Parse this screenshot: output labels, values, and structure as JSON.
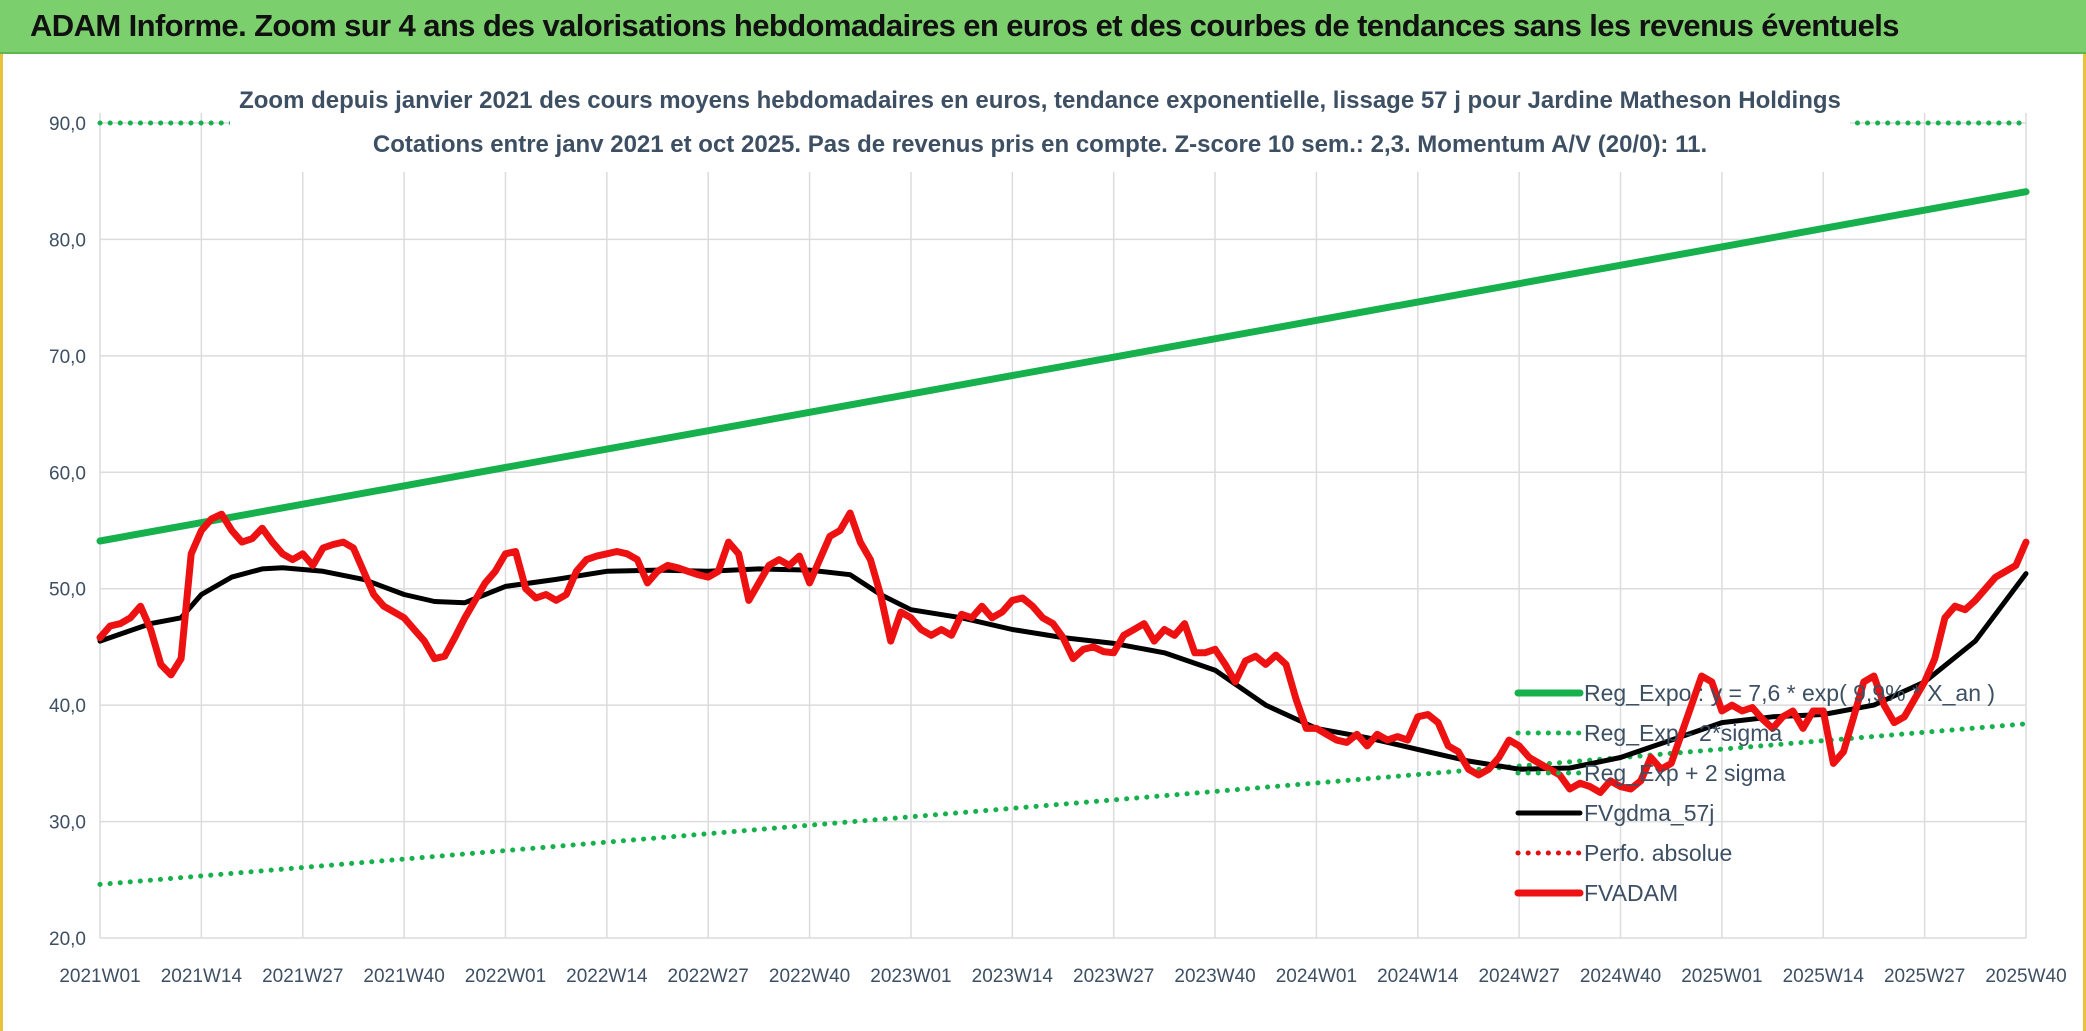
{
  "header": {
    "title": "ADAM Informe. Zoom sur 4 ans des valorisations hebdomadaires en euros et des courbes de tendances sans les revenus éventuels"
  },
  "colors": {
    "banner": "#7ccf6d",
    "reg_exp": "#16b04d",
    "fvgdma": "#000000",
    "perfo": "#e01010",
    "fvadam": "#ee1111",
    "grid": "#dcdcdc",
    "text": "#3d4f63"
  },
  "chart_data": {
    "type": "line",
    "title_line1": "Zoom depuis janvier 2021 des cours moyens hebdomadaires en euros, tendance exponentielle, lissage 57 j pour Jardine Matheson Holdings",
    "title_line2": "Cotations entre janv 2021 et oct 2025. Pas de revenus pris en compte. Z-score 10 sem.: 2,3. Momentum A/V (20/0): 11.",
    "ylim": [
      20,
      90
    ],
    "y_ticks": [
      "20,0",
      "30,0",
      "40,0",
      "50,0",
      "60,0",
      "70,0",
      "80,0",
      "90,0"
    ],
    "x_ticks": [
      "2021W01",
      "2021W14",
      "2021W27",
      "2021W40",
      "2022W01",
      "2022W14",
      "2022W27",
      "2022W40",
      "2023W01",
      "2023W14",
      "2023W27",
      "2023W40",
      "2024W01",
      "2024W14",
      "2024W27",
      "2024W40",
      "2025W01",
      "2025W14",
      "2025W27",
      "2025W40"
    ],
    "legend_position": "bottom-right",
    "series": [
      {
        "name": "Reg_Expo : y = 7,6 * exp( 9,9% * X_an )",
        "style": "solid",
        "color": "#16b04d",
        "points": [
          [
            0,
            54.1
          ],
          [
            19,
            84.1
          ]
        ]
      },
      {
        "name": "Reg_Exp - 2*sigma",
        "style": "dotted",
        "color": "#16b04d",
        "points": [
          [
            0,
            24.6
          ],
          [
            19,
            38.4
          ]
        ]
      },
      {
        "name": "Reg_Exp + 2 sigma",
        "style": "dotted",
        "color": "#16b04d",
        "points": [
          [
            0,
            90.0
          ],
          [
            19,
            90.0
          ]
        ]
      },
      {
        "name": "FVgdma_57j",
        "style": "solid",
        "color": "#000000",
        "points": [
          [
            0,
            45.5
          ],
          [
            0.5,
            47.0
          ],
          [
            0.8,
            47.5
          ],
          [
            1.0,
            49.5
          ],
          [
            1.3,
            51.0
          ],
          [
            1.6,
            51.7
          ],
          [
            1.8,
            51.8
          ],
          [
            2.2,
            51.5
          ],
          [
            2.6,
            50.8
          ],
          [
            3.0,
            49.5
          ],
          [
            3.3,
            48.9
          ],
          [
            3.6,
            48.8
          ],
          [
            4.0,
            50.2
          ],
          [
            4.5,
            50.8
          ],
          [
            5.0,
            51.5
          ],
          [
            5.5,
            51.6
          ],
          [
            6.0,
            51.5
          ],
          [
            6.5,
            51.7
          ],
          [
            7.0,
            51.6
          ],
          [
            7.4,
            51.2
          ],
          [
            7.7,
            49.5
          ],
          [
            8.0,
            48.2
          ],
          [
            8.5,
            47.5
          ],
          [
            9.0,
            46.5
          ],
          [
            9.5,
            45.8
          ],
          [
            10.0,
            45.3
          ],
          [
            10.5,
            44.5
          ],
          [
            11.0,
            43.0
          ],
          [
            11.5,
            40.0
          ],
          [
            12.0,
            38.0
          ],
          [
            12.5,
            37.2
          ],
          [
            13.0,
            36.2
          ],
          [
            13.5,
            35.2
          ],
          [
            14.0,
            34.5
          ],
          [
            14.5,
            34.6
          ],
          [
            15.0,
            35.5
          ],
          [
            15.5,
            37.0
          ],
          [
            16.0,
            38.5
          ],
          [
            16.5,
            39.0
          ],
          [
            17.0,
            39.2
          ],
          [
            17.5,
            40.0
          ],
          [
            18.0,
            42.0
          ],
          [
            18.5,
            45.5
          ],
          [
            19.0,
            51.3
          ]
        ]
      },
      {
        "name": "Perfo. absolue",
        "style": "dotted",
        "color": "#e01010",
        "points": []
      },
      {
        "name": "FVADAM",
        "style": "solid",
        "color": "#ee1111",
        "points": [
          [
            0,
            45.8
          ],
          [
            0.1,
            46.8
          ],
          [
            0.2,
            47.0
          ],
          [
            0.3,
            47.5
          ],
          [
            0.4,
            48.5
          ],
          [
            0.5,
            46.5
          ],
          [
            0.6,
            43.5
          ],
          [
            0.7,
            42.6
          ],
          [
            0.8,
            44.0
          ],
          [
            0.9,
            53.0
          ],
          [
            1.0,
            55.0
          ],
          [
            1.1,
            56.0
          ],
          [
            1.2,
            56.4
          ],
          [
            1.3,
            55.0
          ],
          [
            1.4,
            54.0
          ],
          [
            1.5,
            54.3
          ],
          [
            1.6,
            55.2
          ],
          [
            1.7,
            54.0
          ],
          [
            1.8,
            53.0
          ],
          [
            1.9,
            52.5
          ],
          [
            2.0,
            53.0
          ],
          [
            2.1,
            52.0
          ],
          [
            2.2,
            53.5
          ],
          [
            2.3,
            53.8
          ],
          [
            2.4,
            54.0
          ],
          [
            2.5,
            53.5
          ],
          [
            2.6,
            51.5
          ],
          [
            2.7,
            49.5
          ],
          [
            2.8,
            48.5
          ],
          [
            2.9,
            48.0
          ],
          [
            3.0,
            47.5
          ],
          [
            3.1,
            46.5
          ],
          [
            3.2,
            45.5
          ],
          [
            3.3,
            44.0
          ],
          [
            3.4,
            44.2
          ],
          [
            3.5,
            45.8
          ],
          [
            3.6,
            47.5
          ],
          [
            3.7,
            49.0
          ],
          [
            3.8,
            50.5
          ],
          [
            3.9,
            51.5
          ],
          [
            4.0,
            53.0
          ],
          [
            4.1,
            53.2
          ],
          [
            4.2,
            50.0
          ],
          [
            4.3,
            49.2
          ],
          [
            4.4,
            49.5
          ],
          [
            4.5,
            49.0
          ],
          [
            4.6,
            49.5
          ],
          [
            4.7,
            51.5
          ],
          [
            4.8,
            52.5
          ],
          [
            4.9,
            52.8
          ],
          [
            5.0,
            53.0
          ],
          [
            5.1,
            53.2
          ],
          [
            5.2,
            53.0
          ],
          [
            5.3,
            52.5
          ],
          [
            5.4,
            50.5
          ],
          [
            5.5,
            51.5
          ],
          [
            5.6,
            52.0
          ],
          [
            5.7,
            51.8
          ],
          [
            5.8,
            51.5
          ],
          [
            5.9,
            51.2
          ],
          [
            6.0,
            51.0
          ],
          [
            6.1,
            51.5
          ],
          [
            6.2,
            54.0
          ],
          [
            6.3,
            53.0
          ],
          [
            6.4,
            49.0
          ],
          [
            6.5,
            50.5
          ],
          [
            6.6,
            52.0
          ],
          [
            6.7,
            52.5
          ],
          [
            6.8,
            52.0
          ],
          [
            6.9,
            52.8
          ],
          [
            7.0,
            50.5
          ],
          [
            7.1,
            52.5
          ],
          [
            7.2,
            54.5
          ],
          [
            7.3,
            55.0
          ],
          [
            7.4,
            56.5
          ],
          [
            7.5,
            54.0
          ],
          [
            7.6,
            52.5
          ],
          [
            7.7,
            49.5
          ],
          [
            7.8,
            45.5
          ],
          [
            7.9,
            48.0
          ],
          [
            8.0,
            47.5
          ],
          [
            8.1,
            46.5
          ],
          [
            8.2,
            46.0
          ],
          [
            8.3,
            46.5
          ],
          [
            8.4,
            46.0
          ],
          [
            8.5,
            47.8
          ],
          [
            8.6,
            47.5
          ],
          [
            8.7,
            48.5
          ],
          [
            8.8,
            47.5
          ],
          [
            8.9,
            48.0
          ],
          [
            9.0,
            49.0
          ],
          [
            9.1,
            49.2
          ],
          [
            9.2,
            48.5
          ],
          [
            9.3,
            47.5
          ],
          [
            9.4,
            47.0
          ],
          [
            9.5,
            45.8
          ],
          [
            9.6,
            44.0
          ],
          [
            9.7,
            44.8
          ],
          [
            9.8,
            45.0
          ],
          [
            9.9,
            44.6
          ],
          [
            10.0,
            44.5
          ],
          [
            10.1,
            46.0
          ],
          [
            10.2,
            46.5
          ],
          [
            10.3,
            47.0
          ],
          [
            10.4,
            45.5
          ],
          [
            10.5,
            46.5
          ],
          [
            10.6,
            46.0
          ],
          [
            10.7,
            47.0
          ],
          [
            10.8,
            44.5
          ],
          [
            10.9,
            44.5
          ],
          [
            11.0,
            44.8
          ],
          [
            11.1,
            43.5
          ],
          [
            11.2,
            42.0
          ],
          [
            11.3,
            43.8
          ],
          [
            11.4,
            44.2
          ],
          [
            11.5,
            43.5
          ],
          [
            11.6,
            44.3
          ],
          [
            11.7,
            43.5
          ],
          [
            11.8,
            40.5
          ],
          [
            11.9,
            38.0
          ],
          [
            12.0,
            38.0
          ],
          [
            12.1,
            37.5
          ],
          [
            12.2,
            37.0
          ],
          [
            12.3,
            36.8
          ],
          [
            12.4,
            37.5
          ],
          [
            12.5,
            36.5
          ],
          [
            12.6,
            37.5
          ],
          [
            12.7,
            37.0
          ],
          [
            12.8,
            37.3
          ],
          [
            12.9,
            37.0
          ],
          [
            13.0,
            39.0
          ],
          [
            13.1,
            39.2
          ],
          [
            13.2,
            38.5
          ],
          [
            13.3,
            36.5
          ],
          [
            13.4,
            36.0
          ],
          [
            13.5,
            34.5
          ],
          [
            13.6,
            34.0
          ],
          [
            13.7,
            34.5
          ],
          [
            13.8,
            35.5
          ],
          [
            13.9,
            37.0
          ],
          [
            14.0,
            36.5
          ],
          [
            14.1,
            35.5
          ],
          [
            14.2,
            35.0
          ],
          [
            14.3,
            34.5
          ],
          [
            14.4,
            34.0
          ],
          [
            14.5,
            32.8
          ],
          [
            14.6,
            33.3
          ],
          [
            14.7,
            33.0
          ],
          [
            14.8,
            32.5
          ],
          [
            14.9,
            33.5
          ],
          [
            15.0,
            33.0
          ],
          [
            15.1,
            32.8
          ],
          [
            15.2,
            33.5
          ],
          [
            15.3,
            35.5
          ],
          [
            15.4,
            34.5
          ],
          [
            15.5,
            35.0
          ],
          [
            15.6,
            37.5
          ],
          [
            15.7,
            40.0
          ],
          [
            15.8,
            42.5
          ],
          [
            15.9,
            42.0
          ],
          [
            16.0,
            39.5
          ],
          [
            16.1,
            40.0
          ],
          [
            16.2,
            39.5
          ],
          [
            16.3,
            39.8
          ],
          [
            16.4,
            38.8
          ],
          [
            16.5,
            38.0
          ],
          [
            16.6,
            39.0
          ],
          [
            16.7,
            39.5
          ],
          [
            16.8,
            38.0
          ],
          [
            16.9,
            39.5
          ],
          [
            17.0,
            39.5
          ],
          [
            17.1,
            35.0
          ],
          [
            17.2,
            36.0
          ],
          [
            17.3,
            39.0
          ],
          [
            17.4,
            42.0
          ],
          [
            17.5,
            42.5
          ],
          [
            17.6,
            40.0
          ],
          [
            17.7,
            38.5
          ],
          [
            17.8,
            39.0
          ],
          [
            17.9,
            40.5
          ],
          [
            18.0,
            42.0
          ],
          [
            18.1,
            44.0
          ],
          [
            18.2,
            47.5
          ],
          [
            18.3,
            48.5
          ],
          [
            18.4,
            48.2
          ],
          [
            18.5,
            49.0
          ],
          [
            18.6,
            50.0
          ],
          [
            18.7,
            51.0
          ],
          [
            18.8,
            51.5
          ],
          [
            18.9,
            52.0
          ],
          [
            19.0,
            54.0
          ]
        ]
      }
    ]
  }
}
